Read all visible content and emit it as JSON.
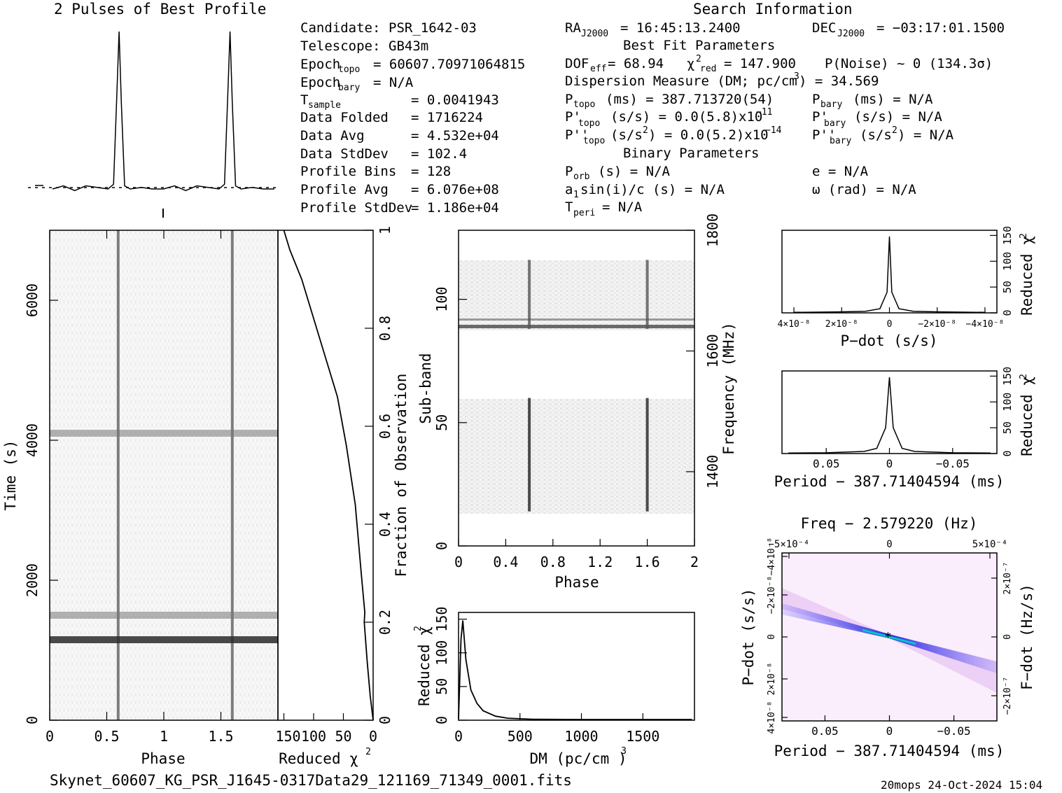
{
  "header": {
    "profile_title": "2 Pulses of Best Profile",
    "search_title": "Search Information"
  },
  "info": {
    "col1": [
      {
        "label": "Candidate:",
        "value": "PSR_1642-03"
      },
      {
        "label": "Telescope:",
        "value": "GB43m"
      },
      {
        "label": "Epoch",
        "sub": "topo",
        "value": "= 60607.70971064815"
      },
      {
        "label": "Epoch",
        "sub": "bary",
        "value": "= N/A"
      },
      {
        "label": "T",
        "sub": "sample",
        "value": "=   0.0041943"
      },
      {
        "label": "Data Folded",
        "value": "=   1716224"
      },
      {
        "label": "Data Avg",
        "value": "=   4.532e+04"
      },
      {
        "label": "Data StdDev",
        "value": "=   102.4"
      },
      {
        "label": "Profile Bins",
        "value": "=   128"
      },
      {
        "label": "Profile Avg",
        "value": "=   6.076e+08"
      },
      {
        "label": "Profile StdDev",
        "value": "=   1.186e+04"
      }
    ],
    "ra": "= 16:45:13.2400",
    "dec": "= −03:17:01.1500",
    "best_fit_title": "Best Fit Parameters",
    "dof": "= 68.94",
    "chi2": "= 147.900",
    "pnoise": "P(Noise) ~ 0   (134.3σ)",
    "dm": "Dispersion Measure (DM; pc/cm",
    "dm_val": ") = 34.569",
    "ptopo": "(ms) =  387.713720(54)",
    "pbary": "(ms) = N/A",
    "pdtopo": "(s/s) = 0.0(5.8)x10",
    "pdtopo_exp": "−11",
    "pdbary": "(s/s) = N/A",
    "pddtopo": "(s/s",
    "pddtopo_val": ") = 0.0(5.2)x10",
    "pddtopo_exp": "−14",
    "pddbary": ") = N/A",
    "binary_title": "Binary Parameters",
    "porb": "(s) = N/A",
    "e": "e = N/A",
    "a1": "sin(i)/c (s) = N/A",
    "omega": "ω (rad) = N/A",
    "tperi": "= N/A"
  },
  "footer": {
    "filename": "Skynet_60607_KG_PSR_J1645-0317Data29_121169_71349_0001.fits",
    "stamp": "20mops 24-Oct-2024 15:04"
  },
  "chart_data": [
    {
      "type": "line",
      "title": "2 Pulses of Best Profile",
      "x": [
        0.0,
        0.1,
        0.2,
        0.3,
        0.4,
        0.5,
        0.55,
        0.58,
        0.6,
        0.62,
        0.65,
        0.7,
        0.8,
        0.9,
        1.0,
        1.1,
        1.2,
        1.3,
        1.4,
        1.5,
        1.55,
        1.58,
        1.6,
        1.62,
        1.65,
        1.7,
        1.8,
        1.9,
        2.0
      ],
      "y": [
        0.0,
        0.02,
        -0.01,
        0.02,
        0.01,
        0.0,
        0.03,
        0.6,
        1.0,
        0.55,
        0.02,
        0.0,
        0.01,
        0.0,
        0.0,
        0.02,
        -0.01,
        0.02,
        0.01,
        0.0,
        0.03,
        0.6,
        1.0,
        0.55,
        0.02,
        0.0,
        0.01,
        0.0,
        0.0
      ]
    },
    {
      "type": "heatmap",
      "xlabel": "Phase",
      "ylabel": "Time (s)",
      "xlim": [
        0,
        2
      ],
      "ylim": [
        0,
        7000
      ],
      "x_ticks": [
        "0",
        "0.5",
        "1",
        "1.5"
      ],
      "y_ticks": [
        "0",
        "2000",
        "4000",
        "6000"
      ],
      "pulse_phase": [
        0.6,
        1.6
      ],
      "bright_rows_s": [
        1150,
        1500,
        4100
      ]
    },
    {
      "type": "line",
      "xlabel": "Reduced χ²",
      "ylabel": "Fraction of Observation",
      "x_ticks": [
        "150",
        "100",
        "50",
        "0"
      ],
      "y_ticks": [
        "0",
        "0.2",
        "0.4",
        "0.6",
        "0.8",
        "1"
      ],
      "x": [
        150,
        140,
        120,
        100,
        80,
        60,
        45,
        30,
        20,
        14,
        15,
        10,
        5,
        0
      ],
      "y": [
        1.0,
        0.96,
        0.9,
        0.82,
        0.74,
        0.66,
        0.56,
        0.44,
        0.3,
        0.22,
        0.2,
        0.12,
        0.05,
        0.0
      ]
    },
    {
      "type": "heatmap",
      "xlabel": "Phase",
      "ylabel": "Sub-band",
      "y2label": "Frequency (MHz)",
      "xlim": [
        0,
        2
      ],
      "ylim": [
        0,
        128
      ],
      "x_ticks": [
        "0",
        "0.4",
        "0.8",
        "1.2",
        "1.6",
        "2"
      ],
      "y_ticks": [
        "0",
        "50",
        "100"
      ],
      "y2_ticks": [
        "1400",
        "1600",
        "1800"
      ],
      "pulse_phase": [
        0.6,
        1.6
      ],
      "populated_subbands": [
        [
          14,
          60
        ],
        [
          88,
          116
        ]
      ]
    },
    {
      "type": "line",
      "xlabel": "DM (pc/cm³)",
      "ylabel": "Reduced χ²",
      "x_ticks": [
        "0",
        "500",
        "1000",
        "1500"
      ],
      "y_ticks": [
        "0",
        "50",
        "100",
        "150"
      ],
      "x": [
        0,
        20,
        35,
        60,
        100,
        150,
        200,
        300,
        400,
        600,
        1000,
        1500,
        1900
      ],
      "y": [
        2,
        120,
        148,
        90,
        45,
        25,
        14,
        6,
        3,
        1.5,
        1,
        1,
        1
      ]
    },
    {
      "type": "line",
      "xlabel": "P−dot (s/s)",
      "ylabel": "Reduced χ²",
      "x_ticks": [
        "4×10⁻⁸",
        "2×10⁻⁸",
        "0",
        "−2×10⁻⁸",
        "−4×10⁻⁸"
      ],
      "y_ticks": [
        "0",
        "50",
        "100",
        "150"
      ],
      "x": [
        -4e-08,
        -2e-08,
        -1e-08,
        -4e-09,
        -1e-09,
        0,
        1e-09,
        4e-09,
        1e-08,
        2e-08,
        4e-08
      ],
      "y": [
        1,
        2,
        3,
        8,
        40,
        148,
        40,
        8,
        3,
        2,
        1
      ]
    },
    {
      "type": "line",
      "xlabel": "Period − 387.71404594 (ms)",
      "ylabel": "Reduced χ²",
      "x_ticks": [
        "0.05",
        "0",
        "−0.05"
      ],
      "y_ticks": [
        "0",
        "50",
        "100",
        "150"
      ],
      "x": [
        0.08,
        0.05,
        0.02,
        0.01,
        0.003,
        0,
        -0.003,
        -0.01,
        -0.02,
        -0.05,
        -0.08
      ],
      "y": [
        1,
        1.5,
        4,
        10,
        50,
        148,
        50,
        10,
        4,
        1.5,
        1
      ]
    },
    {
      "type": "heatmap",
      "title": "Freq − 2.579220 (Hz)",
      "xlabel": "Period − 387.71404594 (ms)",
      "ylabel": "P−dot (s/s)",
      "y2label": "F−dot (Hz/s)",
      "x_ticks": [
        "0.05",
        "0",
        "−0.05"
      ],
      "x2_ticks": [
        "−5×10⁻⁴",
        "0",
        "5×10⁻⁴"
      ],
      "y_ticks": [
        "4×10⁻⁸",
        "2×10⁻⁸",
        "0",
        "−2×10⁻⁸",
        "−4×10⁻⁸"
      ],
      "y2_ticks": [
        "−2×10⁻⁷",
        "0",
        "2×10⁻⁷"
      ]
    }
  ]
}
